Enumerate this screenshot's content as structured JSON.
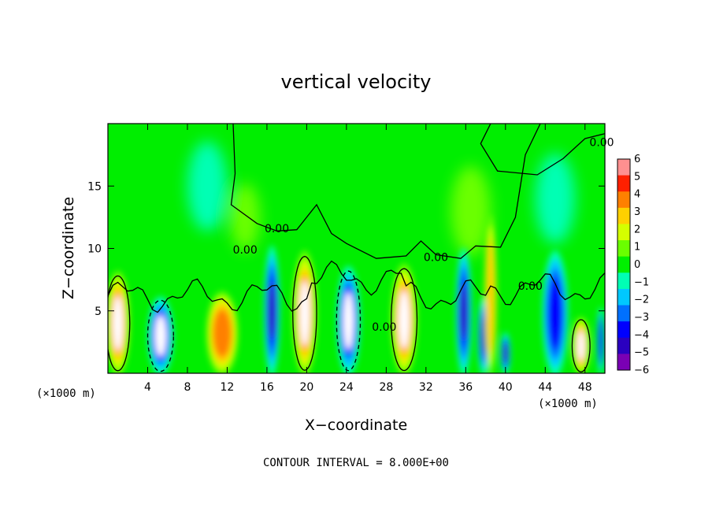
{
  "chart_data": {
    "type": "heatmap",
    "title": "vertical velocity",
    "xlabel": "X−coordinate",
    "ylabel": "Z−coordinate",
    "x_unit_left": "(×1000 m)",
    "x_unit_right": "(×1000 m)",
    "footer": "CONTOUR INTERVAL = 8.000E+00",
    "xlim": [
      0,
      50
    ],
    "ylim": [
      0,
      20
    ],
    "xticks": [
      4,
      8,
      12,
      16,
      20,
      24,
      28,
      32,
      36,
      40,
      44,
      48
    ],
    "yticks": [
      5,
      10,
      15
    ],
    "colorbar": {
      "min": -6,
      "max": 6,
      "ticks": [
        6,
        5,
        4,
        3,
        2,
        1,
        0,
        -1,
        -2,
        -3,
        -4,
        -5,
        -6
      ],
      "tick_labels": [
        "6",
        "5",
        "4",
        "3",
        "2",
        "1",
        "0",
        "−1",
        "−2",
        "−3",
        "−4",
        "−5",
        "−6"
      ],
      "colors": [
        "#7a00b4",
        "#2a00c0",
        "#0000ff",
        "#0070ff",
        "#00c8ff",
        "#00ffb4",
        "#00f000",
        "#6aff00",
        "#d4ff00",
        "#ffd000",
        "#ff8000",
        "#ff2000",
        "#ff9090"
      ]
    },
    "contour_labels": [
      {
        "x": 52.0,
        "y": 18.2,
        "text": "0.00"
      },
      {
        "x": 17.0,
        "y": 11.3,
        "text": "0.00"
      },
      {
        "x": 13.8,
        "y": 9.6,
        "text": "0.00"
      },
      {
        "x": 33.0,
        "y": 9.0,
        "text": "0.00"
      },
      {
        "x": 42.5,
        "y": 6.7,
        "text": "0.00"
      },
      {
        "x": 27.8,
        "y": 3.4,
        "text": "0.00"
      }
    ],
    "cells": [
      {
        "x": 1.0,
        "y": 4.0,
        "w": 2.4,
        "v": 6.0,
        "closed": true
      },
      {
        "x": 5.3,
        "y": 3.0,
        "w": 2.6,
        "v": -6.0,
        "closed": true
      },
      {
        "x": 11.5,
        "y": 3.2,
        "w": 3.2,
        "v": 3.6,
        "closed": false
      },
      {
        "x": 16.5,
        "y": 5.0,
        "w": 1.6,
        "v": -4.5,
        "closed": false
      },
      {
        "x": 19.8,
        "y": 4.8,
        "w": 2.4,
        "v": 6.0,
        "closed": true
      },
      {
        "x": 24.2,
        "y": 4.2,
        "w": 2.4,
        "v": -6.0,
        "closed": true
      },
      {
        "x": 29.8,
        "y": 4.3,
        "w": 2.6,
        "v": 6.0,
        "closed": true
      },
      {
        "x": 35.8,
        "y": 4.9,
        "w": 1.6,
        "v": -5.0,
        "closed": false
      },
      {
        "x": 37.8,
        "y": 3.0,
        "w": 1.2,
        "v": -4.5,
        "closed": false
      },
      {
        "x": 40.0,
        "y": 1.6,
        "w": 1.0,
        "v": -5.0,
        "closed": false
      },
      {
        "x": 45.0,
        "y": 4.8,
        "w": 2.6,
        "v": -3.5,
        "closed": false
      },
      {
        "x": 47.6,
        "y": 2.2,
        "w": 1.8,
        "v": 5.5,
        "closed": true
      },
      {
        "x": 49.6,
        "y": 2.6,
        "w": 0.8,
        "v": -4.0,
        "closed": false
      },
      {
        "x": 38.5,
        "y": 6.2,
        "w": 1.2,
        "v": 2.5,
        "closed": false
      },
      {
        "x": 13.8,
        "y": 12.5,
        "w": 3.0,
        "v": 1.2,
        "closed": false
      },
      {
        "x": 36.5,
        "y": 13.0,
        "w": 4.0,
        "v": 1.0,
        "closed": false
      },
      {
        "x": 10.0,
        "y": 15.0,
        "w": 4.0,
        "v": -1.3,
        "closed": false
      },
      {
        "x": 45.0,
        "y": 14.0,
        "w": 4.0,
        "v": -1.0,
        "closed": false
      }
    ]
  }
}
